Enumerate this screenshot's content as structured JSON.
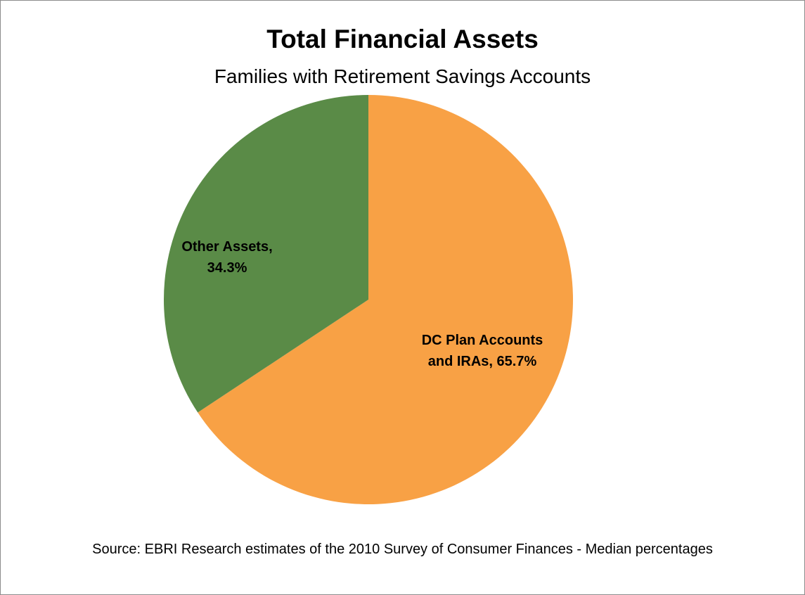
{
  "chart_data": {
    "type": "pie",
    "title": "Total Financial Assets",
    "subtitle": "Families with Retirement Savings Accounts",
    "source": "Source: EBRI Research estimates of the 2010 Survey  of Consumer Finances - Median percentages",
    "slices": [
      {
        "name": "DC Plan Accounts and IRAs",
        "value": 65.7,
        "label_lines": [
          "DC Plan Accounts",
          "and IRAs, 65.7%"
        ],
        "color": "#F8A145"
      },
      {
        "name": "Other Assets",
        "value": 34.3,
        "label_lines": [
          "Other Assets,",
          "34.3%"
        ],
        "color": "#5A8B47"
      }
    ],
    "start_angle": "12 o'clock",
    "direction": "clockwise",
    "legend": "none"
  }
}
